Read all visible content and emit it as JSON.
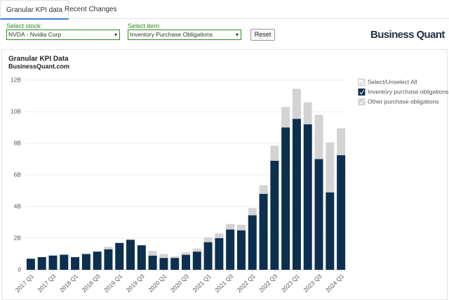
{
  "tabs": [
    "Granular KPI data",
    "Recent Changes"
  ],
  "controls": {
    "stock_label": "Select stock:",
    "stock_value": "NVDA - Nvidia Corp",
    "item_label": "Select item:",
    "item_value": "Inventory Purchase Obligations",
    "reset": "Reset"
  },
  "logo": "Business Quant",
  "chart_data": {
    "type": "stacked-bar",
    "title": "Granular KPI Data",
    "subtitle": "BusinessQuant.com",
    "categories": [
      "2017 Q1",
      null,
      "2017 Q3",
      null,
      "2018 Q1",
      null,
      "2018 Q3",
      null,
      "2019 Q1",
      null,
      "2019 Q3",
      null,
      "2020 Q1",
      null,
      "2020 Q3",
      null,
      "2021 Q1",
      null,
      "2021 Q3",
      null,
      "2022 Q1",
      null,
      "2022 Q3",
      null,
      "2023 Q1",
      null,
      "2023 Q3",
      null,
      "2024 Q1"
    ],
    "series": [
      {
        "name": "Inventory purchase obligations",
        "color": "#0d2f4f",
        "values": [
          0.7,
          0.8,
          0.9,
          0.95,
          0.8,
          1.0,
          1.15,
          1.3,
          1.7,
          1.9,
          1.55,
          0.9,
          0.75,
          0.75,
          0.95,
          1.15,
          1.75,
          2.0,
          2.55,
          2.5,
          3.45,
          4.8,
          6.9,
          9.0,
          9.55,
          9.2,
          7.0,
          4.9,
          7.25
        ]
      },
      {
        "name": "Other purchase obligations",
        "color": "#d3d3d3",
        "values": [
          0,
          0,
          0,
          0.05,
          0,
          0,
          0,
          0.15,
          0,
          0,
          0,
          0.3,
          0.25,
          0.1,
          0.15,
          0.2,
          0.3,
          0.3,
          0.35,
          0.35,
          0.45,
          0.55,
          0.95,
          1.3,
          1.9,
          1.4,
          2.8,
          3.15,
          1.7
        ]
      }
    ],
    "legend_all": "Select/Unselect All",
    "ylim": [
      0,
      12
    ],
    "yticks": [
      0,
      {
        "value": 2,
        "label": "2B"
      },
      {
        "value": 4,
        "label": "4B"
      },
      {
        "value": 6,
        "label": "6B"
      },
      {
        "value": 8,
        "label": "8B"
      },
      {
        "value": 10,
        "label": "10B"
      },
      {
        "value": 12,
        "label": "12B"
      }
    ],
    "grid": true
  }
}
